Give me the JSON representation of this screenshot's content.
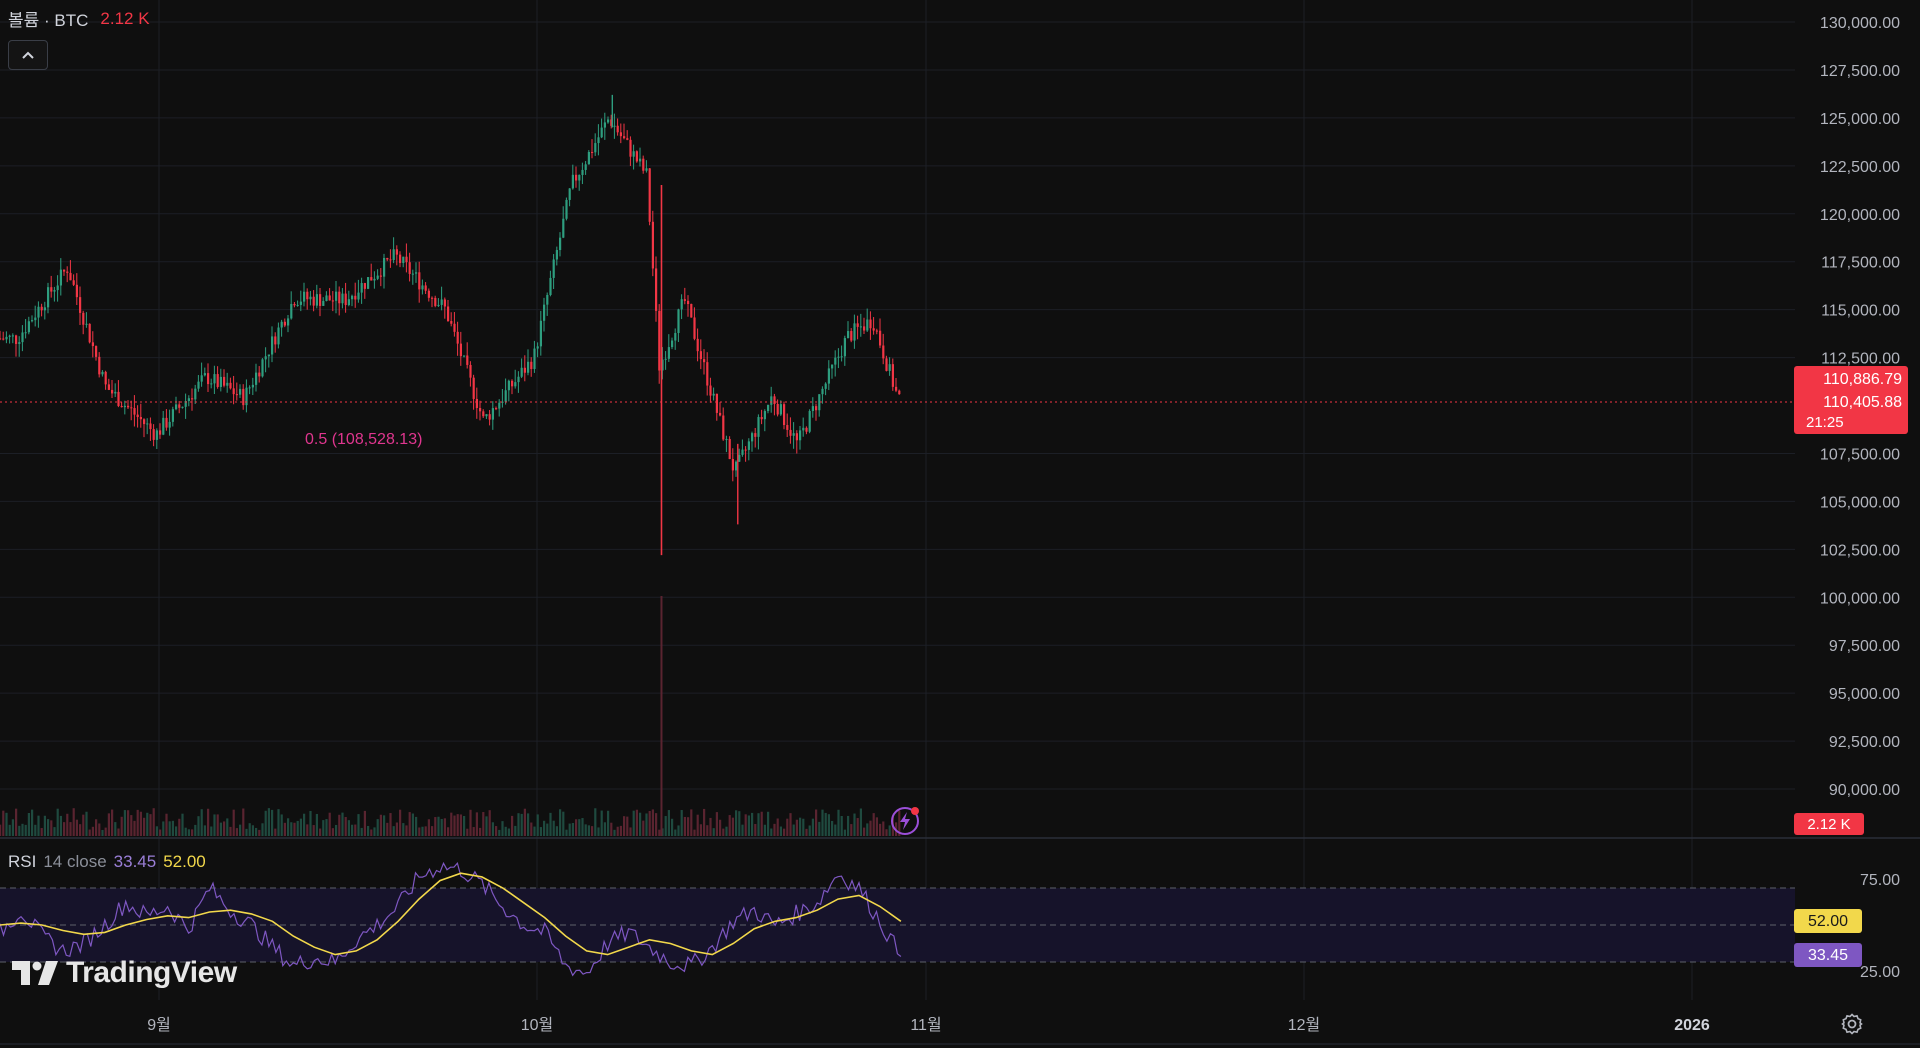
{
  "header": {
    "volume_label": "볼륨 · BTC",
    "volume_value": "2.12 K"
  },
  "collapse_button": {
    "icon": "chevron-up-icon",
    "glyph": "⌃"
  },
  "fib_label": "0.5 (108,528.13)",
  "price_axis": {
    "ticks": [
      "130,000.00",
      "127,500.00",
      "125,000.00",
      "122,500.00",
      "120,000.00",
      "117,500.00",
      "115,000.00",
      "112,500.00",
      "107,500.00",
      "105,000.00",
      "102,500.00",
      "100,000.00",
      "97,500.00",
      "95,000.00",
      "92,500.00",
      "90,000.00"
    ],
    "last_price_high": "110,886.79",
    "last_price": "110,405.88",
    "countdown": "21:25",
    "volume_badge": "2.12 K"
  },
  "rsi": {
    "name": "RSI",
    "params": "14 close",
    "value": "33.45",
    "ma_value": "52.00",
    "ticks": [
      "75.00",
      "25.00"
    ],
    "badge_rsi": "33.45",
    "badge_ma": "52.00"
  },
  "time_axis": {
    "labels": [
      "9월",
      "10월",
      "11월",
      "12월",
      "2026"
    ]
  },
  "logo_text": "TradingView",
  "colors": {
    "background": "#0f0f0f",
    "up": "#2e9e7f",
    "down": "#f23645",
    "rsi_line": "#7e57c2",
    "rsi_ma": "#f2d84b",
    "fib": "#e0368f",
    "price_badge": "#f23645"
  },
  "chart_data": {
    "type": "candlestick",
    "symbol": "BTC",
    "price_range": [
      88000,
      131000
    ],
    "rsi_range": [
      20,
      85
    ],
    "rsi_bands": [
      30,
      50,
      70
    ],
    "anchors": [
      {
        "t": "08-21",
        "close": 113500
      },
      {
        "t": "08-25",
        "close": 117200
      },
      {
        "t": "08-28",
        "close": 111000
      },
      {
        "t": "09-01",
        "close": 108500
      },
      {
        "t": "09-05",
        "close": 111500
      },
      {
        "t": "09-08",
        "close": 110400
      },
      {
        "t": "09-12",
        "close": 115600
      },
      {
        "t": "09-16",
        "close": 115500
      },
      {
        "t": "09-20",
        "close": 117800
      },
      {
        "t": "09-24",
        "close": 115000
      },
      {
        "t": "09-27",
        "close": 109200
      },
      {
        "t": "10-01",
        "close": 112500
      },
      {
        "t": "10-04",
        "close": 121500
      },
      {
        "t": "10-07",
        "close": 125000
      },
      {
        "t": "10-10",
        "close": 122000
      },
      {
        "t": "10-11",
        "close": 112000
      },
      {
        "t": "10-13",
        "close": 115500
      },
      {
        "t": "10-17",
        "close": 106500
      },
      {
        "t": "10-20",
        "close": 110500
      },
      {
        "t": "10-22",
        "close": 108000
      },
      {
        "t": "10-26",
        "close": 113600
      },
      {
        "t": "10-28",
        "close": 114500
      },
      {
        "t": "10-30",
        "close": 110400
      }
    ],
    "rsi_series": [
      {
        "name": "RSI",
        "values": [
          46,
          58,
          44,
          36,
          40,
          50,
          62,
          55,
          60,
          48,
          70,
          58,
          50,
          38,
          28,
          32,
          30,
          42,
          50,
          60,
          76,
          82,
          80,
          72,
          60,
          50,
          46,
          28,
          24,
          40,
          46,
          38,
          30,
          28,
          38,
          52,
          58,
          50,
          56,
          62,
          78,
          70,
          52,
          33
        ]
      },
      {
        "name": "RSI MA",
        "values": [
          50,
          51,
          50,
          47,
          45,
          46,
          50,
          53,
          55,
          54,
          57,
          58,
          56,
          52,
          44,
          38,
          34,
          36,
          42,
          52,
          64,
          74,
          78,
          76,
          70,
          62,
          54,
          44,
          36,
          34,
          38,
          42,
          40,
          36,
          34,
          40,
          48,
          52,
          54,
          58,
          64,
          66,
          60,
          52
        ]
      }
    ]
  }
}
